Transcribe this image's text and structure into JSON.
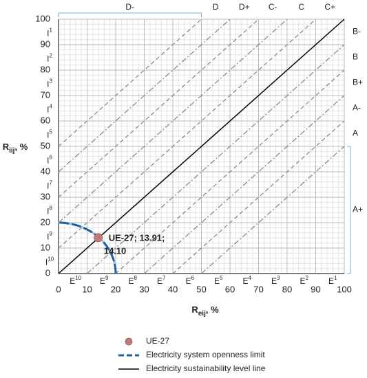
{
  "chart_data": {
    "type": "scatter",
    "x_label": {
      "symbol": "R",
      "sub": "eij",
      "unit": ", %"
    },
    "y_label": {
      "symbol": "R",
      "sub": "iij",
      "unit": ", %"
    },
    "xlim": [
      0,
      100
    ],
    "ylim": [
      0,
      100
    ],
    "xticks": [
      0,
      10,
      20,
      30,
      40,
      50,
      60,
      70,
      80,
      90,
      100
    ],
    "yticks": [
      0,
      10,
      20,
      30,
      40,
      50,
      60,
      70,
      80,
      90,
      100
    ],
    "grid": true,
    "minor_grid_step": 2,
    "series": [
      {
        "name": "UE-27",
        "color": "#c07a7a",
        "x": [
          13.91
        ],
        "values": [
          14.1
        ]
      }
    ],
    "annotation": [
      "UE-27; 13.91;",
      "14.10"
    ],
    "openness_limit": {
      "name": "Electricity system openness limit",
      "color": "#1f5fa0",
      "radius": 20
    },
    "sustainability_line": {
      "name": "Electricity sustainability level line",
      "color": "#000000",
      "x": [
        0,
        100
      ],
      "values": [
        0,
        100
      ]
    },
    "diagonal_offsets": [
      -50,
      -40,
      -30,
      -20,
      -10,
      10,
      20,
      30,
      40,
      50
    ],
    "top_zones": [
      {
        "label": "D-",
        "from": 0,
        "to": 50
      },
      {
        "label": "D",
        "from": 50,
        "to": 60
      },
      {
        "label": "D+",
        "from": 60,
        "to": 70
      },
      {
        "label": "C-",
        "from": 70,
        "to": 80
      },
      {
        "label": "C",
        "from": 80,
        "to": 90
      },
      {
        "label": "C+",
        "from": 90,
        "to": 100
      }
    ],
    "right_zones": [
      {
        "label": "B-",
        "from": 90,
        "to": 100
      },
      {
        "label": "B",
        "from": 80,
        "to": 90
      },
      {
        "label": "B+",
        "from": 70,
        "to": 80
      },
      {
        "label": "A-",
        "from": 60,
        "to": 70
      },
      {
        "label": "A",
        "from": 50,
        "to": 60
      },
      {
        "label": "A+",
        "from": 0,
        "to": 50
      }
    ],
    "left_zones": [
      {
        "base": "I",
        "sup": "1",
        "from": 90,
        "to": 100
      },
      {
        "base": "I",
        "sup": "2",
        "from": 80,
        "to": 90
      },
      {
        "base": "I",
        "sup": "3",
        "from": 70,
        "to": 80
      },
      {
        "base": "I",
        "sup": "4",
        "from": 60,
        "to": 70
      },
      {
        "base": "I",
        "sup": "5",
        "from": 50,
        "to": 60
      },
      {
        "base": "I",
        "sup": "6",
        "from": 40,
        "to": 50
      },
      {
        "base": "I",
        "sup": "7",
        "from": 30,
        "to": 40
      },
      {
        "base": "I",
        "sup": "8",
        "from": 20,
        "to": 30
      },
      {
        "base": "I",
        "sup": "9",
        "from": 10,
        "to": 20
      },
      {
        "base": "I",
        "sup": "10",
        "from": 0,
        "to": 10
      }
    ],
    "bottom_zones": [
      {
        "base": "E",
        "sup": "10",
        "from": 0,
        "to": 10
      },
      {
        "base": "E",
        "sup": "9",
        "from": 10,
        "to": 20
      },
      {
        "base": "E",
        "sup": "8",
        "from": 20,
        "to": 30
      },
      {
        "base": "E",
        "sup": "7",
        "from": 30,
        "to": 40
      },
      {
        "base": "E",
        "sup": "6",
        "from": 40,
        "to": 50
      },
      {
        "base": "E",
        "sup": "5",
        "from": 50,
        "to": 60
      },
      {
        "base": "E",
        "sup": "4",
        "from": 60,
        "to": 70
      },
      {
        "base": "E",
        "sup": "3",
        "from": 70,
        "to": 80
      },
      {
        "base": "E",
        "sup": "2",
        "from": 80,
        "to": 90
      },
      {
        "base": "E",
        "sup": "1",
        "from": 90,
        "to": 100
      }
    ]
  }
}
